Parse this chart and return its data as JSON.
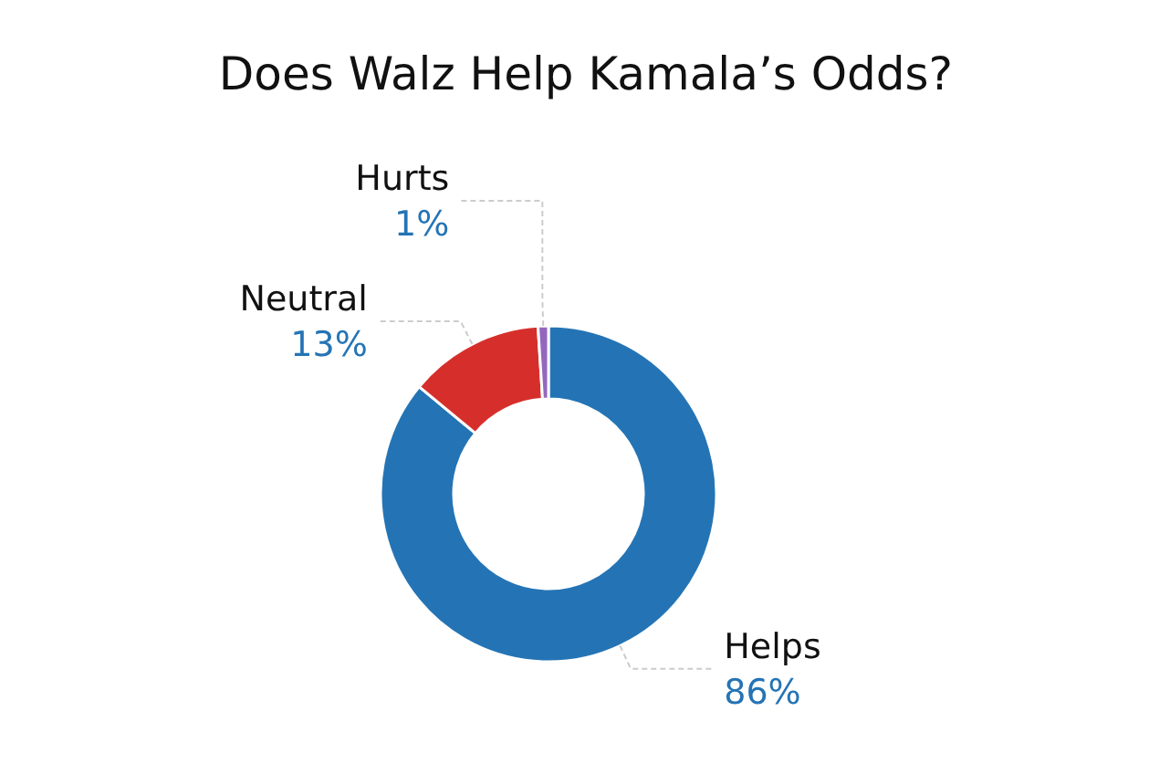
{
  "chart_data": {
    "type": "donut",
    "title": "Does Walz Help Kamala’s Odds?",
    "categories": [
      "Helps",
      "Neutral",
      "Hurts"
    ],
    "values": [
      86,
      13,
      1
    ],
    "colors": [
      "#2474b5",
      "#d62f2b",
      "#9467bd"
    ],
    "value_labels": [
      "86%",
      "13%",
      "1%"
    ]
  }
}
